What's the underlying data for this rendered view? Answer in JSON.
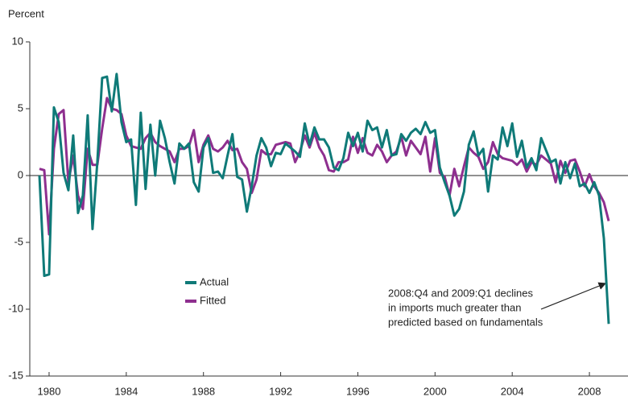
{
  "chart_data": {
    "type": "line",
    "y_label": "Percent",
    "x": [
      1979.5,
      1979.75,
      1980,
      1980.25,
      1980.5,
      1980.75,
      1981,
      1981.25,
      1981.5,
      1981.75,
      1982,
      1982.25,
      1982.5,
      1982.75,
      1983,
      1983.25,
      1983.5,
      1983.75,
      1984,
      1984.25,
      1984.5,
      1984.75,
      1985,
      1985.25,
      1985.5,
      1985.75,
      1986,
      1986.25,
      1986.5,
      1986.75,
      1987,
      1987.25,
      1987.5,
      1987.75,
      1988,
      1988.25,
      1988.5,
      1988.75,
      1989,
      1989.25,
      1989.5,
      1989.75,
      1990,
      1990.25,
      1990.5,
      1990.75,
      1991,
      1991.25,
      1991.5,
      1991.75,
      1992,
      1992.25,
      1992.5,
      1992.75,
      1993,
      1993.25,
      1993.5,
      1993.75,
      1994,
      1994.25,
      1994.5,
      1994.75,
      1995,
      1995.25,
      1995.5,
      1995.75,
      1996,
      1996.25,
      1996.5,
      1996.75,
      1997,
      1997.25,
      1997.5,
      1997.75,
      1998,
      1998.25,
      1998.5,
      1998.75,
      1999,
      1999.25,
      1999.5,
      1999.75,
      2000,
      2000.25,
      2000.5,
      2000.75,
      2001,
      2001.25,
      2001.5,
      2001.75,
      2002,
      2002.25,
      2002.5,
      2002.75,
      2003,
      2003.25,
      2003.5,
      2003.75,
      2004,
      2004.25,
      2004.5,
      2004.75,
      2005,
      2005.25,
      2005.5,
      2005.75,
      2006,
      2006.25,
      2006.5,
      2006.75,
      2007,
      2007.25,
      2007.5,
      2007.75,
      2008,
      2008.25,
      2008.5,
      2008.75,
      2009
    ],
    "series": [
      {
        "name": "Actual",
        "color": "#0f7a78",
        "values": [
          0,
          -7.5,
          -7.4,
          5.1,
          4,
          0.2,
          -1.1,
          3,
          -2.8,
          -1.5,
          4.5,
          -4,
          1,
          7.3,
          7.4,
          4.8,
          7.6,
          4,
          2.5,
          2.7,
          -2.2,
          4.7,
          -1,
          3.8,
          0,
          4.1,
          2.8,
          1,
          -0.6,
          2.4,
          2,
          2.4,
          -0.5,
          -1.2,
          2.1,
          2.8,
          0.2,
          0.3,
          -0.2,
          1.5,
          3.1,
          -0.1,
          -0.3,
          -2.7,
          -0.8,
          1.5,
          2.8,
          2.1,
          0.7,
          1.7,
          1.6,
          2.4,
          2.1,
          1.8,
          1.4,
          3.9,
          2.3,
          3.6,
          2.7,
          2.7,
          2.1,
          0.6,
          0.4,
          1.3,
          3.2,
          2.2,
          3.2,
          1.8,
          4.1,
          3.4,
          3.6,
          2.1,
          3.4,
          1.5,
          1.6,
          3.1,
          2.6,
          3.2,
          3.5,
          3.1,
          4,
          3.2,
          3.4,
          0.6,
          -0.5,
          -1.5,
          -3,
          -2.5,
          -1.2,
          2.3,
          3.3,
          1.5,
          2,
          -1.2,
          1.5,
          1.2,
          3.6,
          2.2,
          3.9,
          1.4,
          2.6,
          0.6,
          1.3,
          0.4,
          2.8,
          1.9,
          1,
          1.2,
          -0.6,
          1,
          -0.2,
          0.9,
          -0.8,
          -0.6,
          -1.3,
          -0.5,
          -1.5,
          -4.7,
          -11.1
        ]
      },
      {
        "name": "Fitted",
        "color": "#8e2f8f",
        "values": [
          0.5,
          0.4,
          -4.4,
          2,
          4.6,
          4.9,
          -0.5,
          1.5,
          -1.5,
          -2.5,
          2,
          0.8,
          0.8,
          3.5,
          5.8,
          5,
          4.9,
          4.6,
          3,
          2.2,
          2.1,
          2,
          2.8,
          3.2,
          2.5,
          2.2,
          2,
          1.8,
          1,
          2,
          2,
          2.2,
          3.4,
          1,
          2.3,
          3,
          2,
          1.8,
          2.1,
          2.6,
          1.9,
          2,
          1,
          0.5,
          -1.3,
          -0.3,
          1.9,
          1.6,
          1.6,
          2.3,
          2.4,
          2.5,
          2.4,
          1,
          1.8,
          3,
          2.1,
          3.2,
          2.1,
          1.5,
          0.4,
          0.3,
          1,
          1,
          1.2,
          2.9,
          1.7,
          2.8,
          1.7,
          1.5,
          2.3,
          1.8,
          1,
          1.5,
          1.8,
          2.9,
          1.5,
          2.6,
          2.1,
          1.6,
          2.9,
          0.3,
          2.8,
          0.2,
          -0.1,
          -1.5,
          0.5,
          -0.8,
          0.7,
          2.1,
          1.7,
          1.4,
          0.5,
          1,
          2.5,
          1.6,
          1.3,
          1.2,
          1.1,
          0.8,
          1.2,
          0.3,
          1,
          0.8,
          1.5,
          1.2,
          0.9,
          -0.5,
          1.1,
          0.2,
          1.1,
          1.2,
          0.3,
          -0.8,
          0.1,
          -0.8,
          -1.3,
          -2,
          -3.4
        ]
      }
    ],
    "xlim": [
      1979,
      2010
    ],
    "xticks": [
      1980,
      1984,
      1988,
      1992,
      1996,
      2000,
      2004,
      2008
    ],
    "ylim": [
      -15,
      10
    ],
    "yticks": [
      -15,
      -10,
      -5,
      0,
      5,
      10
    ],
    "zero_line": true,
    "legend": "center-left",
    "annotation": [
      "2008:Q4 and 2009:Q1 declines",
      "in imports much greater than",
      "predicted based on fundamentals"
    ]
  }
}
